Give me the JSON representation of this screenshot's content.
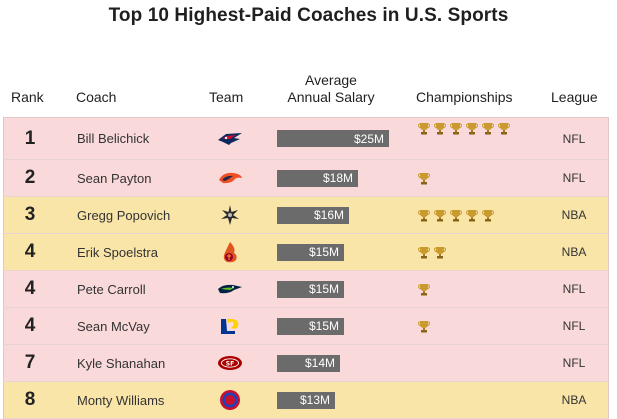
{
  "title": "Top 10 Highest-Paid Coaches in U.S. Sports",
  "headers": {
    "rank": "Rank",
    "coach": "Coach",
    "team": "Team",
    "salary_line1": "Average",
    "salary_line2": "Annual Salary",
    "championships": "Championships",
    "league": "League"
  },
  "colors": {
    "nfl_row": "#f9d9d9",
    "nba_row": "#fae5a8",
    "bar": "#6b6b6b",
    "trophy": "#c99a2e"
  },
  "chart_data": {
    "type": "table",
    "title": "Top 10 Highest-Paid Coaches in U.S. Sports",
    "columns": [
      "Rank",
      "Coach",
      "Team",
      "Average Annual Salary",
      "Championships",
      "League"
    ],
    "salary_max_millions": 25,
    "rows": [
      {
        "rank": "1",
        "coach": "Bill Belichick",
        "team_icon": "patriots-logo-icon",
        "salary_label": "$25M",
        "salary_millions": 25,
        "championships": 6,
        "league": "NFL"
      },
      {
        "rank": "2",
        "coach": "Sean Payton",
        "team_icon": "broncos-logo-icon",
        "salary_label": "$18M",
        "salary_millions": 18,
        "championships": 1,
        "league": "NFL"
      },
      {
        "rank": "3",
        "coach": "Gregg Popovich",
        "team_icon": "spurs-logo-icon",
        "salary_label": "$16M",
        "salary_millions": 16,
        "championships": 5,
        "league": "NBA"
      },
      {
        "rank": "4",
        "coach": "Erik Spoelstra",
        "team_icon": "heat-logo-icon",
        "salary_label": "$15M",
        "salary_millions": 15,
        "championships": 2,
        "league": "NBA"
      },
      {
        "rank": "4",
        "coach": "Pete Carroll",
        "team_icon": "seahawks-logo-icon",
        "salary_label": "$15M",
        "salary_millions": 15,
        "championships": 1,
        "league": "NFL"
      },
      {
        "rank": "4",
        "coach": "Sean McVay",
        "team_icon": "rams-logo-icon",
        "salary_label": "$15M",
        "salary_millions": 15,
        "championships": 1,
        "league": "NFL"
      },
      {
        "rank": "7",
        "coach": "Kyle Shanahan",
        "team_icon": "49ers-logo-icon",
        "salary_label": "$14M",
        "salary_millions": 14,
        "championships": 0,
        "league": "NFL"
      },
      {
        "rank": "8",
        "coach": "Monty Williams",
        "team_icon": "pistons-logo-icon",
        "salary_label": "$13M",
        "salary_millions": 13,
        "championships": 0,
        "league": "NBA"
      }
    ]
  }
}
